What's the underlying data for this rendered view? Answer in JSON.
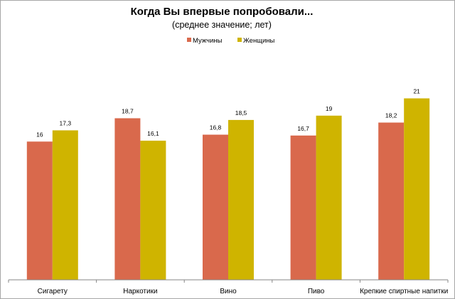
{
  "chart_data": {
    "type": "bar",
    "title": "Когда Вы впервые попробовали...",
    "subtitle": "(среднее значение;  лет)",
    "categories": [
      "Сигарету",
      "Наркотики",
      "Вино",
      "Пиво",
      "Крепкие спиртные напитки"
    ],
    "series": [
      {
        "name": "Мужчины",
        "color": "#d9694c",
        "values": [
          16,
          18.7,
          16.8,
          16.7,
          18.2
        ],
        "labels": [
          "16",
          "18,7",
          "16,8",
          "16,7",
          "18,2"
        ]
      },
      {
        "name": "Женщины",
        "color": "#cfb400",
        "values": [
          17.3,
          16.1,
          18.5,
          19,
          21
        ],
        "labels": [
          "17,3",
          "16,1",
          "18,5",
          "19",
          "21"
        ]
      }
    ],
    "ylim": [
      0,
      24
    ],
    "grid": false,
    "y_axis_visible": false,
    "legend_position": "top-center"
  }
}
